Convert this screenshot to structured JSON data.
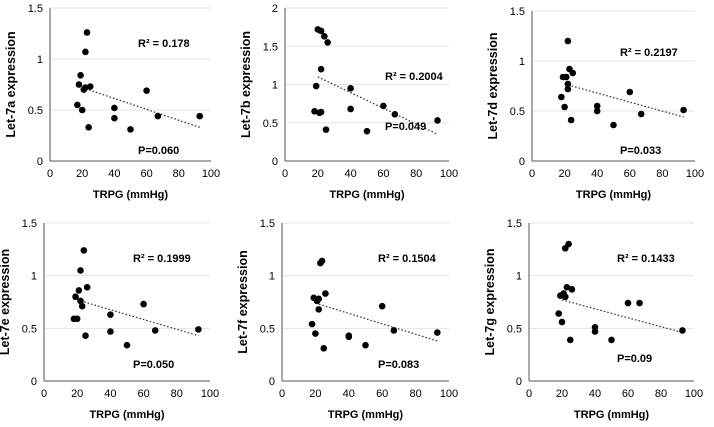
{
  "chart_data": [
    {
      "type": "scatter",
      "xlabel": "TRPG (mmHg)",
      "ylabel": "Let-7a expression",
      "xlim": [
        0,
        100
      ],
      "ylim": [
        0,
        1.5
      ],
      "x_ticks": [
        "0",
        "20",
        "40",
        "60",
        "80",
        "100"
      ],
      "y_ticks": [
        "0",
        "0.5",
        "1",
        "1.5"
      ],
      "grid": "horizontal",
      "points": [
        [
          17,
          0.55
        ],
        [
          18,
          0.75
        ],
        [
          19,
          0.84
        ],
        [
          20,
          0.5
        ],
        [
          21,
          0.7
        ],
        [
          22,
          1.07
        ],
        [
          22,
          0.72
        ],
        [
          23,
          1.26
        ],
        [
          24,
          0.33
        ],
        [
          25,
          0.73
        ],
        [
          40,
          0.52
        ],
        [
          40,
          0.42
        ],
        [
          50,
          0.31
        ],
        [
          60,
          0.69
        ],
        [
          67,
          0.44
        ],
        [
          93,
          0.44
        ]
      ],
      "trendline": {
        "x": [
          20,
          93
        ],
        "y": [
          0.72,
          0.33
        ],
        "style": "dotted"
      },
      "annotations": {
        "r2": "R² = 0.178",
        "p": "P=0.060"
      }
    },
    {
      "type": "scatter",
      "xlabel": "TRPG (mmHg)",
      "ylabel": "Let-7b expression",
      "xlim": [
        0,
        100
      ],
      "ylim": [
        0,
        2
      ],
      "x_ticks": [
        "0",
        "20",
        "40",
        "60",
        "80",
        "100"
      ],
      "y_ticks": [
        "0",
        "0.5",
        "1",
        "1.5",
        "2"
      ],
      "grid": "horizontal",
      "points": [
        [
          18,
          0.65
        ],
        [
          19,
          0.98
        ],
        [
          20,
          1.72
        ],
        [
          21,
          0.63
        ],
        [
          22,
          1.7
        ],
        [
          22,
          1.2
        ],
        [
          22,
          0.64
        ],
        [
          24,
          1.63
        ],
        [
          25,
          0.41
        ],
        [
          26,
          1.55
        ],
        [
          40,
          0.95
        ],
        [
          40,
          0.68
        ],
        [
          50,
          0.39
        ],
        [
          60,
          0.72
        ],
        [
          67,
          0.61
        ],
        [
          93,
          0.53
        ]
      ],
      "trendline": {
        "x": [
          20,
          93
        ],
        "y": [
          1.1,
          0.35
        ],
        "style": "dotted"
      },
      "annotations": {
        "r2": "R² = 0.2004",
        "p": "P=0.049"
      }
    },
    {
      "type": "scatter",
      "xlabel": "TRPG (mmHg)",
      "ylabel": "Let-7d expression",
      "xlim": [
        0,
        100
      ],
      "ylim": [
        0,
        1.5
      ],
      "x_ticks": [
        "0",
        "20",
        "40",
        "60",
        "80",
        "100"
      ],
      "y_ticks": [
        "0",
        "0.5",
        "1",
        "1.5"
      ],
      "grid": "horizontal",
      "points": [
        [
          18,
          0.64
        ],
        [
          19,
          0.84
        ],
        [
          20,
          0.54
        ],
        [
          21,
          0.84
        ],
        [
          22,
          0.77
        ],
        [
          22,
          0.72
        ],
        [
          22,
          1.2
        ],
        [
          23,
          0.92
        ],
        [
          24,
          0.41
        ],
        [
          25,
          0.88
        ],
        [
          40,
          0.55
        ],
        [
          40,
          0.5
        ],
        [
          50,
          0.36
        ],
        [
          60,
          0.69
        ],
        [
          67,
          0.47
        ],
        [
          93,
          0.51
        ]
      ],
      "trendline": {
        "x": [
          20,
          93
        ],
        "y": [
          0.77,
          0.44
        ],
        "style": "dotted"
      },
      "annotations": {
        "r2": "R² = 0.2197",
        "p": "P=0.033"
      }
    },
    {
      "type": "scatter",
      "xlabel": "TRPG (mmHg)",
      "ylabel": "Let-7e expression",
      "xlim": [
        0,
        100
      ],
      "ylim": [
        0,
        1.5
      ],
      "x_ticks": [
        "0",
        "20",
        "40",
        "60",
        "80",
        "100"
      ],
      "y_ticks": [
        "0",
        "0.5",
        "1",
        "1.5"
      ],
      "grid": "horizontal",
      "points": [
        [
          18,
          0.59
        ],
        [
          19,
          0.8
        ],
        [
          20,
          0.59
        ],
        [
          21,
          0.86
        ],
        [
          22,
          1.05
        ],
        [
          22,
          0.76
        ],
        [
          23,
          0.71
        ],
        [
          24,
          1.24
        ],
        [
          25,
          0.43
        ],
        [
          26,
          0.89
        ],
        [
          40,
          0.63
        ],
        [
          40,
          0.47
        ],
        [
          50,
          0.34
        ],
        [
          60,
          0.73
        ],
        [
          67,
          0.48
        ],
        [
          93,
          0.49
        ]
      ],
      "trendline": {
        "x": [
          20,
          93
        ],
        "y": [
          0.77,
          0.43
        ],
        "style": "dotted"
      },
      "annotations": {
        "r2": "R² = 0.1999",
        "p": "P=0.050"
      }
    },
    {
      "type": "scatter",
      "xlabel": "TRPG (mmHg)",
      "ylabel": "Let-7f expression",
      "xlim": [
        0,
        100
      ],
      "ylim": [
        0,
        1.5
      ],
      "x_ticks": [
        "0",
        "20",
        "40",
        "60",
        "80",
        "100"
      ],
      "y_ticks": [
        "0",
        "0.5",
        "1",
        "1.5"
      ],
      "grid": "horizontal",
      "points": [
        [
          18,
          0.54
        ],
        [
          19,
          0.79
        ],
        [
          20,
          0.45
        ],
        [
          21,
          0.76
        ],
        [
          22,
          0.68
        ],
        [
          22,
          0.78
        ],
        [
          23,
          1.12
        ],
        [
          24,
          1.14
        ],
        [
          25,
          0.31
        ],
        [
          26,
          0.83
        ],
        [
          40,
          0.43
        ],
        [
          40,
          0.42
        ],
        [
          50,
          0.34
        ],
        [
          60,
          0.71
        ],
        [
          67,
          0.48
        ],
        [
          93,
          0.46
        ]
      ],
      "trendline": {
        "x": [
          20,
          93
        ],
        "y": [
          0.74,
          0.38
        ],
        "style": "dotted"
      },
      "annotations": {
        "r2": "R² = 0.1504",
        "p": "P=0.083"
      }
    },
    {
      "type": "scatter",
      "xlabel": "TRPG (mmHg)",
      "ylabel": "Let-7g expression",
      "xlim": [
        0,
        100
      ],
      "ylim": [
        0,
        1.5
      ],
      "x_ticks": [
        "0",
        "20",
        "40",
        "60",
        "80",
        "100"
      ],
      "y_ticks": [
        "0",
        "0.5",
        "1",
        "1.5"
      ],
      "grid": "horizontal",
      "points": [
        [
          18,
          0.64
        ],
        [
          19,
          0.81
        ],
        [
          20,
          0.56
        ],
        [
          21,
          0.83
        ],
        [
          22,
          1.26
        ],
        [
          22,
          0.8
        ],
        [
          23,
          0.89
        ],
        [
          24,
          1.3
        ],
        [
          25,
          0.39
        ],
        [
          26,
          0.87
        ],
        [
          40,
          0.51
        ],
        [
          40,
          0.47
        ],
        [
          50,
          0.39
        ],
        [
          60,
          0.74
        ],
        [
          67,
          0.74
        ],
        [
          93,
          0.48
        ]
      ],
      "trendline": {
        "x": [
          20,
          93
        ],
        "y": [
          0.77,
          0.46
        ],
        "style": "dotted"
      },
      "annotations": {
        "r2": "R² = 0.1433",
        "p": "P=0.09"
      }
    }
  ]
}
